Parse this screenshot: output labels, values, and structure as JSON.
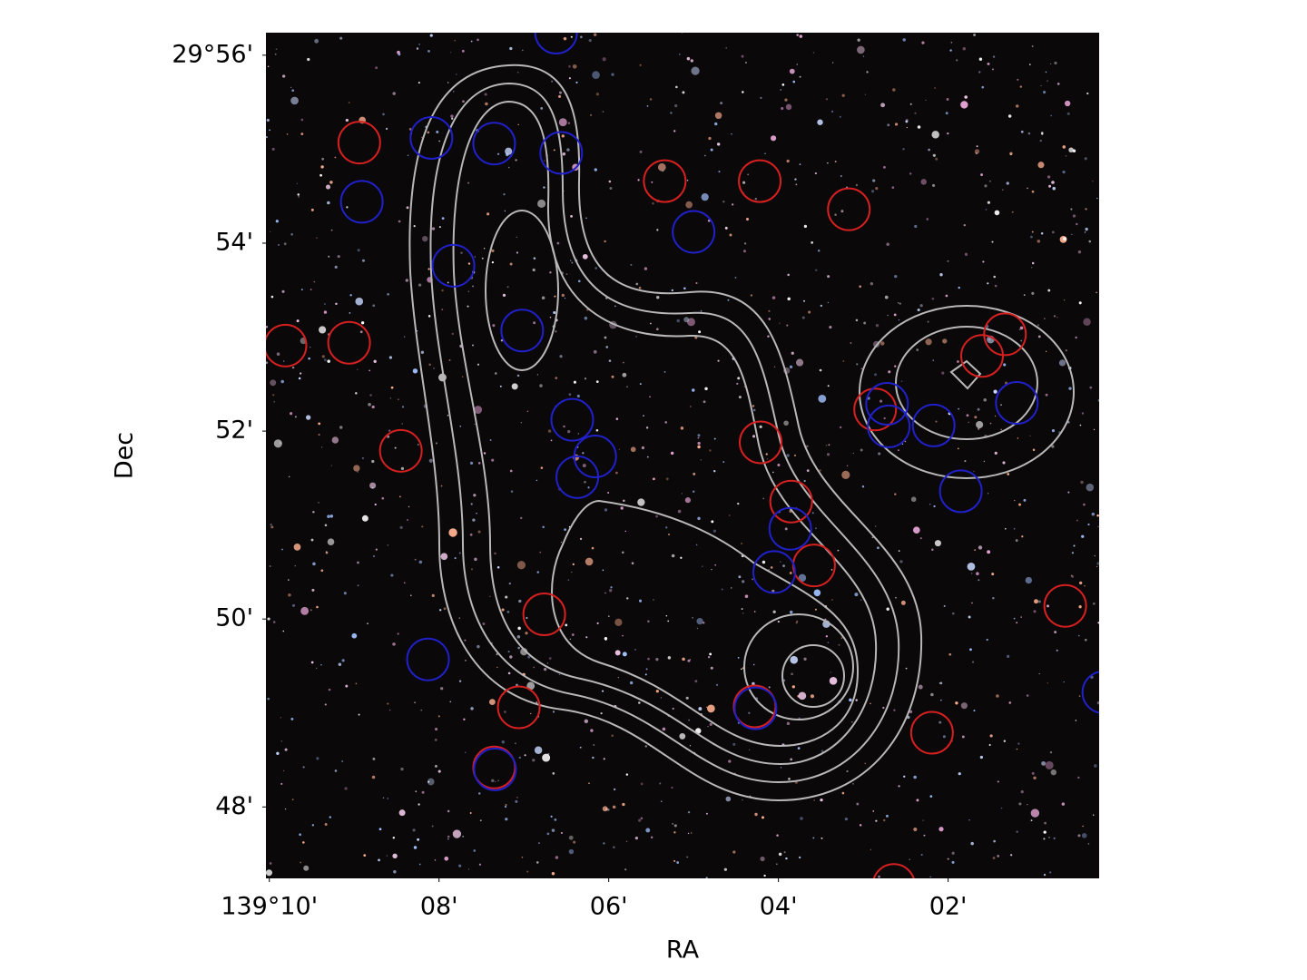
{
  "chart_data": {
    "type": "scatter",
    "x_label": "RA",
    "y_label": "Dec",
    "xlim": [
      10.04,
      0.22
    ],
    "ylim": [
      47.24,
      56.24
    ],
    "xticks": [
      {
        "value": 10,
        "label": "139°10'"
      },
      {
        "value": 8,
        "label": "08'"
      },
      {
        "value": 6,
        "label": "06'"
      },
      {
        "value": 4,
        "label": "04'"
      },
      {
        "value": 2,
        "label": "02'"
      }
    ],
    "yticks": [
      {
        "value": 56,
        "label": "29°56'"
      },
      {
        "value": 54,
        "label": "54'"
      },
      {
        "value": 52,
        "label": "52'"
      },
      {
        "value": 50,
        "label": "50'"
      },
      {
        "value": 48,
        "label": "48'"
      }
    ],
    "series": [
      {
        "color": "#d42020",
        "x": [
          8.94,
          9.81,
          9.06,
          8.45,
          5.34,
          4.22,
          3.17,
          4.21,
          3.85,
          3.58,
          6.76,
          7.06,
          7.35,
          4.28,
          2.19,
          0.62,
          2.86,
          1.6,
          1.33,
          2.64
        ],
        "y": [
          55.07,
          52.91,
          52.94,
          51.79,
          54.66,
          54.66,
          54.36,
          51.88,
          51.25,
          50.57,
          50.05,
          49.06,
          48.42,
          49.07,
          48.79,
          50.14,
          52.23,
          52.8,
          53.03,
          47.17
        ]
      },
      {
        "color": "#2020c8",
        "x": [
          8.91,
          8.09,
          7.35,
          6.56,
          7.83,
          7.02,
          6.43,
          6.16,
          6.37,
          5.0,
          3.86,
          4.05,
          8.13,
          7.34,
          4.27,
          2.72,
          2.7,
          2.17,
          1.19,
          1.85,
          0.17,
          6.62
        ],
        "y": [
          54.44,
          55.12,
          55.06,
          54.96,
          53.76,
          53.07,
          52.12,
          51.73,
          51.51,
          54.12,
          50.96,
          50.5,
          49.57,
          48.4,
          49.05,
          52.29,
          52.05,
          52.06,
          52.3,
          51.36,
          49.22,
          56.24
        ]
      }
    ]
  }
}
